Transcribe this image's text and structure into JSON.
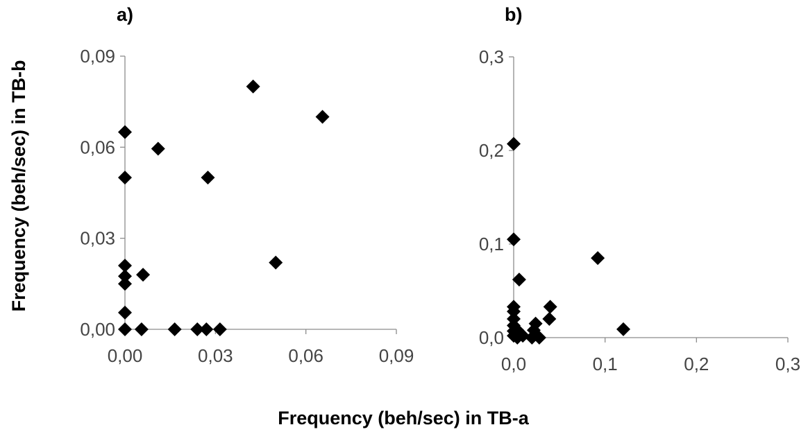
{
  "shared_xlabel": "Frequency (beh/sec) in TB-a",
  "shared_ylabel": "Frequency (beh/sec) in TB-b",
  "colors": {
    "marker": "#000000",
    "axis": "#8c8c8c",
    "tick_text": "#444444"
  },
  "chart_data": [
    {
      "type": "scatter",
      "panel": "a)",
      "title": "",
      "xlabel": "Frequency (beh/sec) in TB-a",
      "ylabel": "Frequency (beh/sec) in TB-b",
      "xlim": [
        0,
        0.09
      ],
      "ylim": [
        0,
        0.09
      ],
      "xticks": [
        "0,00",
        "0,03",
        "0,06",
        "0,09"
      ],
      "yticks": [
        "0,00",
        "0,03",
        "0,06",
        "0,09"
      ],
      "grid": false,
      "marker": "diamond",
      "points": [
        {
          "x": 0.0,
          "y": 0.065
        },
        {
          "x": 0.0,
          "y": 0.05
        },
        {
          "x": 0.0,
          "y": 0.021
        },
        {
          "x": 0.0,
          "y": 0.0175
        },
        {
          "x": 0.0,
          "y": 0.015
        },
        {
          "x": 0.0,
          "y": 0.0055
        },
        {
          "x": 0.0,
          "y": 0.0
        },
        {
          "x": 0.0055,
          "y": 0.0
        },
        {
          "x": 0.006,
          "y": 0.018
        },
        {
          "x": 0.011,
          "y": 0.0595
        },
        {
          "x": 0.0165,
          "y": 0.0
        },
        {
          "x": 0.024,
          "y": 0.0
        },
        {
          "x": 0.027,
          "y": 0.0
        },
        {
          "x": 0.0275,
          "y": 0.05
        },
        {
          "x": 0.0315,
          "y": 0.0
        },
        {
          "x": 0.0425,
          "y": 0.08
        },
        {
          "x": 0.05,
          "y": 0.022
        },
        {
          "x": 0.0655,
          "y": 0.07
        }
      ]
    },
    {
      "type": "scatter",
      "panel": "b)",
      "title": "",
      "xlabel": "Frequency (beh/sec) in TB-a",
      "ylabel": "Frequency (beh/sec) in TB-b",
      "xlim": [
        0,
        0.3
      ],
      "ylim": [
        0,
        0.3
      ],
      "xticks": [
        "0,0",
        "0,1",
        "0,2",
        "0,3"
      ],
      "yticks": [
        "0,0",
        "0,1",
        "0,2",
        "0,3"
      ],
      "grid": false,
      "marker": "diamond",
      "points": [
        {
          "x": 0.0,
          "y": 0.207
        },
        {
          "x": 0.0,
          "y": 0.105
        },
        {
          "x": 0.0,
          "y": 0.033
        },
        {
          "x": 0.0,
          "y": 0.028
        },
        {
          "x": 0.0,
          "y": 0.02
        },
        {
          "x": 0.0,
          "y": 0.013
        },
        {
          "x": 0.0,
          "y": 0.007
        },
        {
          "x": 0.0,
          "y": 0.002
        },
        {
          "x": 0.004,
          "y": 0.0
        },
        {
          "x": 0.004,
          "y": 0.008
        },
        {
          "x": 0.006,
          "y": 0.062
        },
        {
          "x": 0.01,
          "y": 0.002
        },
        {
          "x": 0.02,
          "y": 0.0
        },
        {
          "x": 0.022,
          "y": 0.008
        },
        {
          "x": 0.024,
          "y": 0.015
        },
        {
          "x": 0.028,
          "y": 0.0
        },
        {
          "x": 0.039,
          "y": 0.02
        },
        {
          "x": 0.04,
          "y": 0.033
        },
        {
          "x": 0.092,
          "y": 0.085
        },
        {
          "x": 0.12,
          "y": 0.009
        }
      ]
    }
  ]
}
